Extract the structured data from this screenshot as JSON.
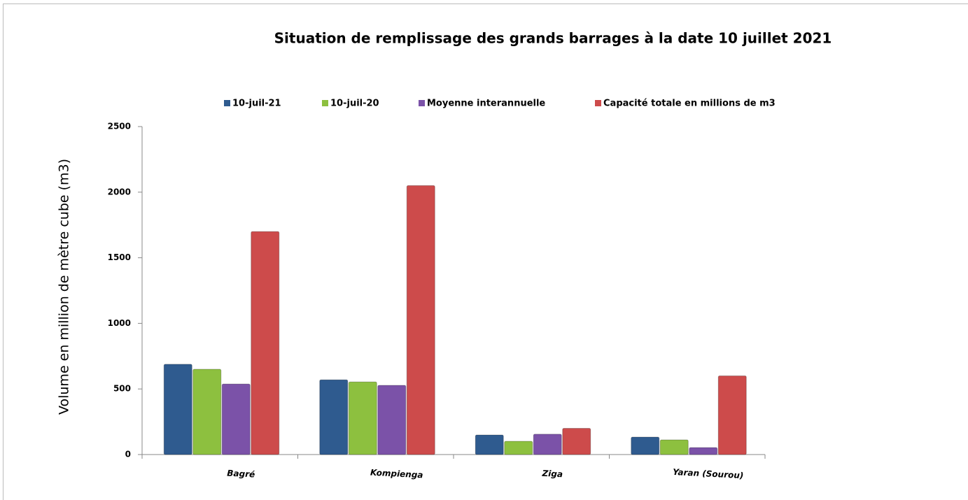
{
  "chart_data": {
    "type": "bar",
    "title": "Situation de remplissage des grands barrages à la date  10 juillet 2021",
    "y_label": "Volume en million de mètre cube (m3)",
    "categories": [
      "Bagré",
      "Kompienga",
      "Ziga",
      "Yaran (Sourou)"
    ],
    "series": [
      {
        "name": "10-juil-21",
        "color": "#2f5b8f",
        "values": [
          688,
          570,
          149,
          133
        ]
      },
      {
        "name": "10-juil-20",
        "color": "#8dc03f",
        "values": [
          650,
          554,
          101,
          112
        ]
      },
      {
        "name": "Moyenne interannuelle",
        "color": "#7b52a8",
        "values": [
          538,
          528,
          155,
          53
        ]
      },
      {
        "name": "Capacité totale en millions de m3",
        "color": "#cd4b4b",
        "values": [
          1700,
          2050,
          200,
          600
        ]
      }
    ],
    "ylim": [
      0,
      2500
    ],
    "yticks": [
      0,
      500,
      1000,
      1500,
      2000,
      2500
    ],
    "legend": "top",
    "grid": false
  }
}
